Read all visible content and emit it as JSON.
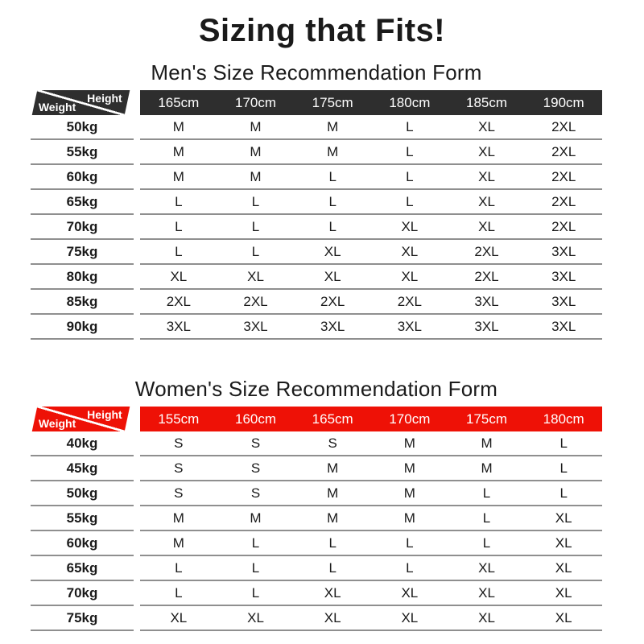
{
  "page_title": "Sizing that Fits!",
  "colors": {
    "men_header_bg": "#2e2e2e",
    "women_header_bg": "#ee1106",
    "header_text": "#ffffff",
    "body_text": "#1a1a1a",
    "row_line": "#8f8f8f",
    "background": "#ffffff"
  },
  "chart_data": [
    {
      "type": "table",
      "title": "Men's Size Recommendation Form",
      "corner": {
        "col_header": "Height",
        "row_header": "Weight"
      },
      "columns": [
        "165cm",
        "170cm",
        "175cm",
        "180cm",
        "185cm",
        "190cm"
      ],
      "rows": [
        {
          "weight": "50kg",
          "sizes": [
            "M",
            "M",
            "M",
            "L",
            "XL",
            "2XL"
          ]
        },
        {
          "weight": "55kg",
          "sizes": [
            "M",
            "M",
            "M",
            "L",
            "XL",
            "2XL"
          ]
        },
        {
          "weight": "60kg",
          "sizes": [
            "M",
            "M",
            "L",
            "L",
            "XL",
            "2XL"
          ]
        },
        {
          "weight": "65kg",
          "sizes": [
            "L",
            "L",
            "L",
            "L",
            "XL",
            "2XL"
          ]
        },
        {
          "weight": "70kg",
          "sizes": [
            "L",
            "L",
            "L",
            "XL",
            "XL",
            "2XL"
          ]
        },
        {
          "weight": "75kg",
          "sizes": [
            "L",
            "L",
            "XL",
            "XL",
            "2XL",
            "3XL"
          ]
        },
        {
          "weight": "80kg",
          "sizes": [
            "XL",
            "XL",
            "XL",
            "XL",
            "2XL",
            "3XL"
          ]
        },
        {
          "weight": "85kg",
          "sizes": [
            "2XL",
            "2XL",
            "2XL",
            "2XL",
            "3XL",
            "3XL"
          ]
        },
        {
          "weight": "90kg",
          "sizes": [
            "3XL",
            "3XL",
            "3XL",
            "3XL",
            "3XL",
            "3XL"
          ]
        }
      ]
    },
    {
      "type": "table",
      "title": "Women's Size Recommendation Form",
      "corner": {
        "col_header": "Height",
        "row_header": "Weight"
      },
      "columns": [
        "155cm",
        "160cm",
        "165cm",
        "170cm",
        "175cm",
        "180cm"
      ],
      "rows": [
        {
          "weight": "40kg",
          "sizes": [
            "S",
            "S",
            "S",
            "M",
            "M",
            "L"
          ]
        },
        {
          "weight": "45kg",
          "sizes": [
            "S",
            "S",
            "M",
            "M",
            "M",
            "L"
          ]
        },
        {
          "weight": "50kg",
          "sizes": [
            "S",
            "S",
            "M",
            "M",
            "L",
            "L"
          ]
        },
        {
          "weight": "55kg",
          "sizes": [
            "M",
            "M",
            "M",
            "M",
            "L",
            "XL"
          ]
        },
        {
          "weight": "60kg",
          "sizes": [
            "M",
            "L",
            "L",
            "L",
            "L",
            "XL"
          ]
        },
        {
          "weight": "65kg",
          "sizes": [
            "L",
            "L",
            "L",
            "L",
            "XL",
            "XL"
          ]
        },
        {
          "weight": "70kg",
          "sizes": [
            "L",
            "L",
            "XL",
            "XL",
            "XL",
            "XL"
          ]
        },
        {
          "weight": "75kg",
          "sizes": [
            "XL",
            "XL",
            "XL",
            "XL",
            "XL",
            "XL"
          ]
        }
      ]
    }
  ]
}
